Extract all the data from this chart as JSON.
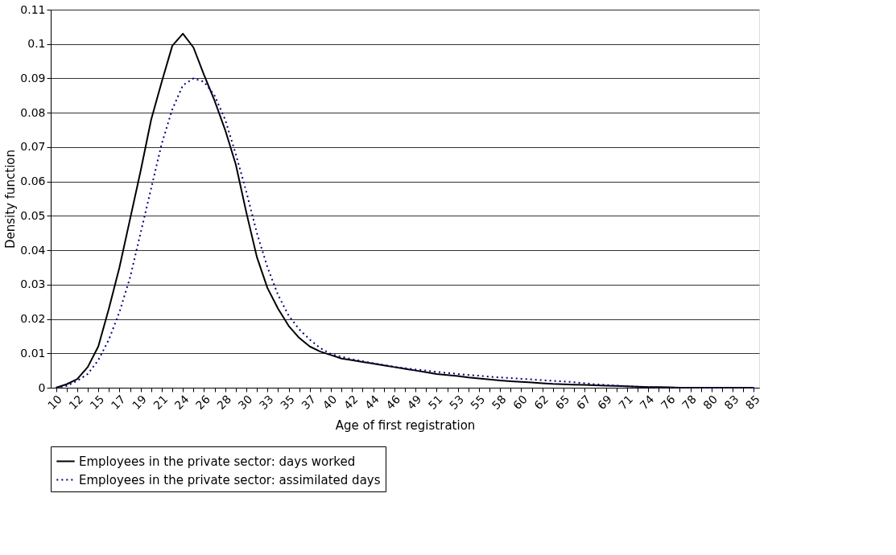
{
  "chart_data": {
    "type": "line",
    "xlabel": "Age of first registration",
    "ylabel": "Density function",
    "categories": [
      "10",
      null,
      "12",
      null,
      "15",
      null,
      "17",
      null,
      "19",
      null,
      "21",
      null,
      "24",
      null,
      "26",
      null,
      "28",
      null,
      "30",
      null,
      "33",
      null,
      "35",
      null,
      "37",
      null,
      "40",
      null,
      "42",
      null,
      "44",
      null,
      "46",
      null,
      "49",
      null,
      "51",
      null,
      "53",
      null,
      "55",
      null,
      "58",
      null,
      "60",
      null,
      "62",
      null,
      "65",
      null,
      "67",
      null,
      "69",
      null,
      "71",
      null,
      "74",
      null,
      "76",
      null,
      "78",
      null,
      "80",
      null,
      "83",
      null,
      "85"
    ],
    "ylim": [
      0,
      0.11
    ],
    "yticks": [
      0,
      0.01,
      0.02,
      0.03,
      0.04,
      0.05,
      0.06,
      0.07,
      0.08,
      0.09,
      0.1,
      0.11
    ],
    "grid": "y",
    "legend": "bottom",
    "marker": "none",
    "series": [
      {
        "name": "Employees in the private sector: days worked",
        "color": "#000000",
        "line_style": "solid",
        "values": [
          0,
          0.001,
          0.0025,
          0.006,
          0.012,
          0.023,
          0.035,
          0.049,
          0.063,
          0.078,
          0.089,
          0.0995,
          0.103,
          0.099,
          0.091,
          0.0835,
          0.075,
          0.065,
          0.051,
          0.038,
          0.029,
          0.023,
          0.018,
          0.0145,
          0.012,
          0.0105,
          0.0095,
          0.0085,
          0.008,
          0.0075,
          0.007,
          0.0065,
          0.006,
          0.0055,
          0.005,
          0.0045,
          0.004,
          0.0037,
          0.0034,
          0.003,
          0.0027,
          0.0024,
          0.0021,
          0.0019,
          0.0017,
          0.0015,
          0.0013,
          0.0011,
          0.001,
          0.0009,
          0.0008,
          0.0007,
          0.0006,
          0.0005,
          0.0004,
          0.0003,
          0.0002,
          0.0002,
          0.0001,
          0,
          0,
          0,
          0,
          0,
          0,
          0,
          0
        ]
      },
      {
        "name": "Employees in the private sector: assimilated days",
        "color": "#000080",
        "line_style": "dotted",
        "values": [
          0,
          0.0005,
          0.002,
          0.004,
          0.008,
          0.014,
          0.022,
          0.032,
          0.045,
          0.058,
          0.071,
          0.081,
          0.088,
          0.09,
          0.089,
          0.085,
          0.078,
          0.068,
          0.057,
          0.045,
          0.035,
          0.027,
          0.021,
          0.017,
          0.014,
          0.0115,
          0.0098,
          0.009,
          0.0083,
          0.0077,
          0.0071,
          0.0066,
          0.0061,
          0.0057,
          0.0053,
          0.005,
          0.0046,
          0.0043,
          0.004,
          0.0037,
          0.0035,
          0.0032,
          0.003,
          0.0028,
          0.0026,
          0.0024,
          0.0022,
          0.002,
          0.0018,
          0.0016,
          0.0013,
          0.001,
          0.0008,
          0.0006,
          0.0004,
          0.0003,
          0.0002,
          0.0001,
          0,
          0,
          0,
          0,
          0,
          0,
          0,
          0,
          0
        ]
      }
    ]
  }
}
